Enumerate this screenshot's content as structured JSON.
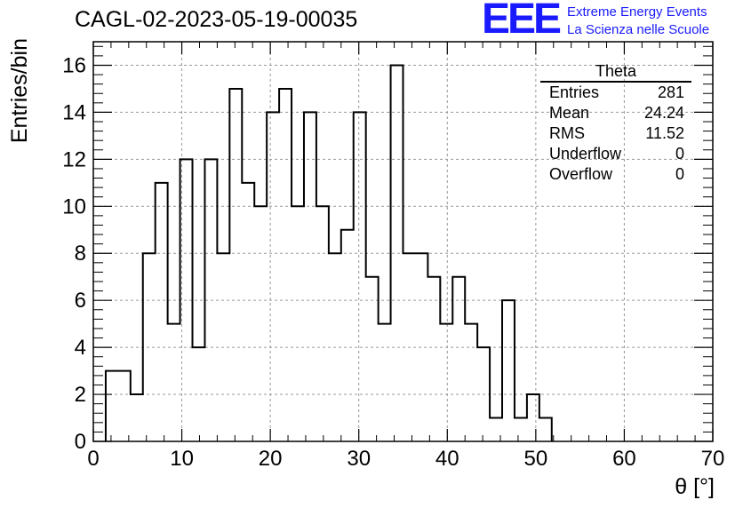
{
  "header": {
    "title": "CAGL-02-2023-05-19-00035",
    "logo": "EEE",
    "logo_line1": "Extreme Energy Events",
    "logo_line2": "La Scienza nelle Scuole"
  },
  "stats": {
    "title": "Theta",
    "rows": [
      {
        "label": "Entries",
        "value": "281"
      },
      {
        "label": "Mean",
        "value": "24.24"
      },
      {
        "label": "RMS",
        "value": "11.52"
      },
      {
        "label": "Underflow",
        "value": "0"
      },
      {
        "label": "Overflow",
        "value": "0"
      }
    ]
  },
  "colors": {
    "logo": "#1a1aff",
    "line": "#000000",
    "grid": "#999999"
  },
  "chart_data": {
    "type": "bar",
    "histogram": true,
    "title": "CAGL-02-2023-05-19-00035",
    "xlabel": "θ [°]",
    "ylabel": "Entries/bin",
    "xlim": [
      0,
      70
    ],
    "ylim": [
      0,
      17
    ],
    "grid": true,
    "legend": "none",
    "xticks": [
      0,
      10,
      20,
      30,
      40,
      50,
      60,
      70
    ],
    "yticks": [
      0,
      2,
      4,
      6,
      8,
      10,
      12,
      14,
      16
    ],
    "bin_width": 1.4,
    "bin_edges_start": 1.4,
    "values": [
      3,
      3,
      2,
      8,
      11,
      5,
      12,
      4,
      12,
      8,
      15,
      11,
      10,
      14,
      15,
      10,
      14,
      10,
      8,
      9,
      14,
      7,
      5,
      16,
      8,
      8,
      7,
      5,
      7,
      5,
      4,
      1,
      6,
      1,
      2,
      1
    ]
  }
}
